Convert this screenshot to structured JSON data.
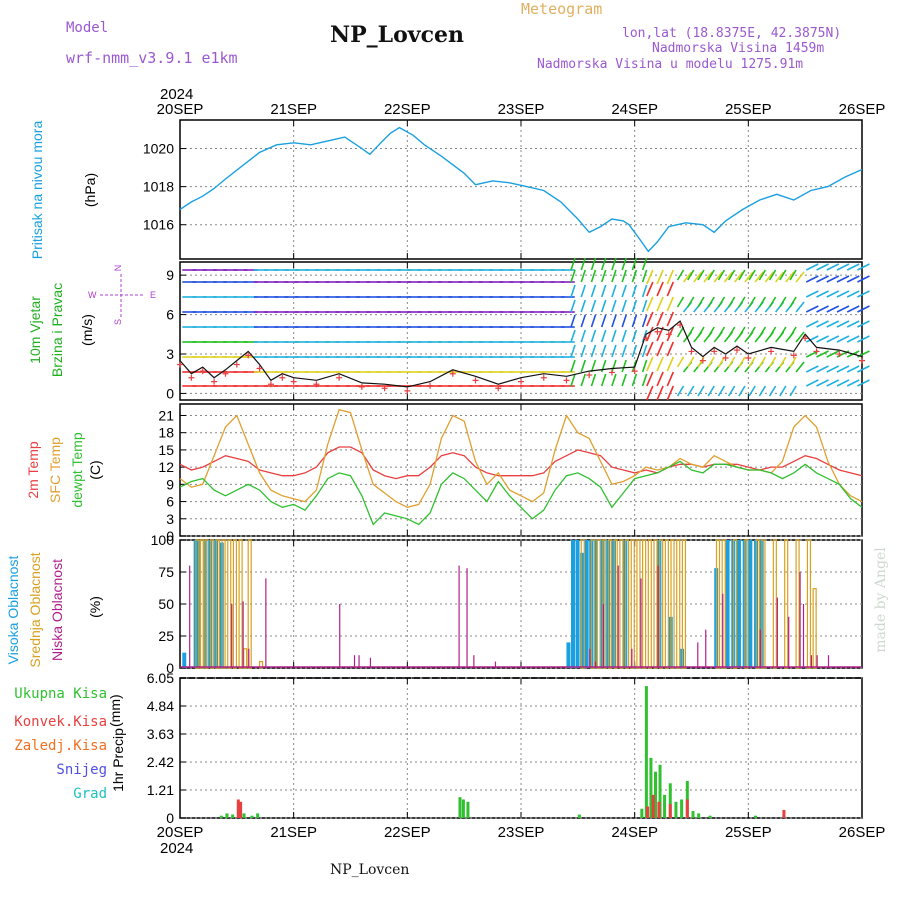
{
  "header": {
    "model_label": "Model",
    "model_value": "wrf-nmm_v3.9.1 e1km",
    "title": "NP_Lovcen",
    "meteogram_label": "Meteogram",
    "lonlat": "lon,lat (18.8375E, 42.3875N)",
    "elevation": "Nadmorska Visina 1459m",
    "model_elevation": "Nadmorska Visina u modelu 1275.91m",
    "year_top": "2024",
    "year_bottom": "2024",
    "footer_station": "NP_Lovcen",
    "watermark": "made by Angel"
  },
  "colors": {
    "pressure": "#1aa0e0",
    "temp2m": "#e84040",
    "sfc": "#e0a030",
    "dew": "#30c030",
    "cloud_high": "#1aa0e0",
    "cloud_mid": "#d8a020",
    "cloud_low": "#b0208c",
    "rain_total": "#30c030",
    "rain_conv": "#e84040",
    "rain_frozen": "#f07020",
    "snow": "#5050e0",
    "hail": "#20c0c0",
    "wind_label": "#20b020",
    "compass": "#b040d0"
  },
  "chart_data": [
    {
      "type": "line",
      "ylabel": "Pritisak na nivou mora",
      "unit": "(hPa)",
      "x_ticks": [
        "20SEP",
        "21SEP",
        "22SEP",
        "23SEP",
        "24SEP",
        "25SEP",
        "26SEP"
      ],
      "yticks": [
        1016,
        1018,
        1020
      ],
      "ylim": [
        1014.2,
        1021.5
      ],
      "x_days": [
        0,
        0.1,
        0.2,
        0.3,
        0.4,
        0.55,
        0.7,
        0.85,
        1.0,
        1.15,
        1.3,
        1.45,
        1.6,
        1.67,
        1.75,
        1.85,
        1.93,
        2.05,
        2.15,
        2.3,
        2.5,
        2.6,
        2.75,
        2.9,
        3.05,
        3.2,
        3.35,
        3.5,
        3.6,
        3.7,
        3.8,
        3.9,
        3.95,
        4.05,
        4.12,
        4.2,
        4.3,
        4.45,
        4.6,
        4.7,
        4.8,
        4.95,
        5.1,
        5.25,
        5.4,
        5.55,
        5.7,
        5.85,
        6.0
      ],
      "values": [
        1016.8,
        1017.2,
        1017.5,
        1017.9,
        1018.4,
        1019.1,
        1019.8,
        1020.2,
        1020.3,
        1020.2,
        1020.4,
        1020.6,
        1020.0,
        1019.7,
        1020.2,
        1020.8,
        1021.1,
        1020.7,
        1020.2,
        1019.6,
        1018.7,
        1018.1,
        1018.3,
        1018.2,
        1018.0,
        1017.8,
        1017.2,
        1016.3,
        1015.6,
        1015.9,
        1016.3,
        1016.2,
        1016.0,
        1015.2,
        1014.6,
        1015.1,
        1015.9,
        1016.1,
        1016.0,
        1015.6,
        1016.2,
        1016.8,
        1017.3,
        1017.6,
        1017.3,
        1017.8,
        1018.0,
        1018.5,
        1018.9
      ]
    },
    {
      "type": "line",
      "ylabel": "10m Vjetar Brzina i Pravac",
      "unit": "(m/s)",
      "compass_labels": {
        "n": "N",
        "s": "S",
        "e": "E",
        "w": "W"
      },
      "x_ticks": [
        "20SEP",
        "21SEP",
        "22SEP",
        "23SEP",
        "24SEP",
        "25SEP",
        "26SEP"
      ],
      "yticks": [
        0,
        3,
        6,
        9
      ],
      "ylim": [
        -0.5,
        10
      ],
      "x_days": [
        0,
        0.1,
        0.2,
        0.3,
        0.4,
        0.5,
        0.6,
        0.7,
        0.8,
        0.9,
        1.0,
        1.2,
        1.4,
        1.6,
        1.8,
        2.0,
        2.2,
        2.4,
        2.6,
        2.8,
        3.0,
        3.2,
        3.4,
        3.6,
        3.8,
        4.0,
        4.1,
        4.2,
        4.3,
        4.4,
        4.5,
        4.6,
        4.7,
        4.8,
        4.9,
        5.0,
        5.2,
        5.4,
        5.5,
        5.6,
        5.8,
        6.0
      ],
      "values": [
        2.5,
        1.5,
        2.0,
        1.2,
        1.8,
        2.5,
        3.2,
        2.2,
        1.0,
        1.5,
        1.2,
        1.0,
        1.5,
        0.8,
        0.7,
        0.5,
        0.9,
        1.8,
        1.3,
        0.7,
        1.2,
        1.5,
        1.3,
        1.7,
        1.9,
        2.0,
        4.5,
        5.0,
        4.8,
        5.5,
        3.5,
        2.8,
        3.5,
        3.0,
        3.6,
        3.0,
        3.5,
        3.2,
        4.5,
        3.5,
        3.3,
        2.8
      ]
    },
    {
      "type": "line",
      "ylabel": [
        "2m Temp",
        "SFC Temp",
        "dewpt Temp"
      ],
      "unit": "(C)",
      "x_ticks": [
        "20SEP",
        "21SEP",
        "22SEP",
        "23SEP",
        "24SEP",
        "25SEP",
        "26SEP"
      ],
      "yticks": [
        0,
        3,
        6,
        9,
        12,
        15,
        18,
        21
      ],
      "ylim": [
        0,
        23
      ],
      "x_days": [
        0,
        0.1,
        0.2,
        0.3,
        0.4,
        0.5,
        0.6,
        0.7,
        0.8,
        0.9,
        1.0,
        1.1,
        1.2,
        1.3,
        1.4,
        1.5,
        1.6,
        1.7,
        1.8,
        1.9,
        2.0,
        2.1,
        2.2,
        2.3,
        2.4,
        2.5,
        2.6,
        2.7,
        2.8,
        2.9,
        3.0,
        3.1,
        3.2,
        3.3,
        3.4,
        3.5,
        3.6,
        3.7,
        3.8,
        3.9,
        4.0,
        4.1,
        4.2,
        4.3,
        4.4,
        4.5,
        4.6,
        4.7,
        4.8,
        4.9,
        5.0,
        5.1,
        5.2,
        5.3,
        5.4,
        5.5,
        5.6,
        5.7,
        5.8,
        5.9,
        6.0
      ],
      "series": [
        {
          "name": "2m Temp",
          "values": [
            12.5,
            11.5,
            12.0,
            13.0,
            14.0,
            13.5,
            13.0,
            11.5,
            11.0,
            10.5,
            10.5,
            11.0,
            12.0,
            14.5,
            15.5,
            15.5,
            14.5,
            11.5,
            10.5,
            10.0,
            10.5,
            10.5,
            12.0,
            14.0,
            14.5,
            14.0,
            12.0,
            11.0,
            10.5,
            10.5,
            10.5,
            10.5,
            11.0,
            13.0,
            14.0,
            15.0,
            14.5,
            14.0,
            12.0,
            11.5,
            11.0,
            11.5,
            11.0,
            12.0,
            12.5,
            12.5,
            12.0,
            12.5,
            12.5,
            12.5,
            12.0,
            11.5,
            12.0,
            12.0,
            13.0,
            14.0,
            13.5,
            12.5,
            11.5,
            11.0,
            10.5
          ]
        },
        {
          "name": "SFC Temp",
          "values": [
            10.0,
            8.5,
            9.0,
            14.0,
            19.0,
            21.0,
            16.0,
            11.0,
            8.0,
            7.0,
            6.5,
            6.0,
            8.0,
            16.0,
            22.0,
            21.5,
            15.0,
            9.0,
            7.5,
            6.0,
            5.0,
            5.5,
            9.0,
            17.0,
            21.0,
            20.0,
            13.0,
            9.0,
            11.0,
            8.0,
            7.0,
            6.0,
            7.5,
            15.0,
            21.0,
            18.0,
            17.0,
            13.0,
            9.0,
            9.5,
            10.5,
            12.0,
            11.5,
            12.0,
            13.5,
            12.5,
            12.0,
            14.0,
            13.0,
            12.0,
            11.5,
            11.5,
            11.0,
            13.0,
            19.0,
            21.0,
            19.0,
            13.0,
            9.0,
            7.0,
            6.0
          ]
        },
        {
          "name": "dewpt Temp",
          "values": [
            8.5,
            9.5,
            10.0,
            8.0,
            7.0,
            8.0,
            9.0,
            8.0,
            6.0,
            5.0,
            5.5,
            4.5,
            7.0,
            10.0,
            11.0,
            10.5,
            7.0,
            2.0,
            4.0,
            3.5,
            3.0,
            2.0,
            4.0,
            9.0,
            11.0,
            10.0,
            8.0,
            6.0,
            9.5,
            7.0,
            5.0,
            3.0,
            4.5,
            8.0,
            10.5,
            11.0,
            10.0,
            8.5,
            5.0,
            7.5,
            10.0,
            10.5,
            11.0,
            12.0,
            13.0,
            11.5,
            11.0,
            12.5,
            12.5,
            12.0,
            11.5,
            11.5,
            11.0,
            10.0,
            11.0,
            12.5,
            11.0,
            10.0,
            9.0,
            6.5,
            5.0
          ]
        }
      ]
    },
    {
      "type": "bar",
      "ylabel": [
        "Visoka Oblacnost",
        "Srednja Oblacnost",
        "Niska Oblacnost"
      ],
      "unit": "(%)",
      "x_ticks": [
        "20SEP",
        "21SEP",
        "22SEP",
        "23SEP",
        "24SEP",
        "25SEP",
        "26SEP"
      ],
      "yticks": [
        0,
        25,
        50,
        75,
        100
      ],
      "ylim": [
        0,
        100
      ],
      "series": [
        {
          "name": "Visoka Oblacnost",
          "x_days": [
            0.02,
            0.12,
            0.15,
            0.2,
            0.25,
            0.3,
            0.35,
            3.4,
            3.44,
            3.48,
            3.52,
            3.56,
            3.6,
            3.64,
            3.7,
            3.75,
            3.8,
            3.9,
            4.2,
            4.3,
            4.4,
            4.7,
            4.8,
            4.85,
            4.9,
            4.95,
            5.0,
            5.05,
            5.1
          ],
          "values": [
            12,
            100,
            100,
            100,
            100,
            100,
            98,
            20,
            100,
            100,
            90,
            100,
            100,
            100,
            100,
            100,
            100,
            100,
            100,
            40,
            15,
            78,
            100,
            100,
            100,
            100,
            100,
            100,
            100
          ]
        },
        {
          "name": "Srednja Oblacnost",
          "x_days": [
            0.14,
            0.18,
            0.22,
            0.27,
            0.32,
            0.37,
            0.42,
            0.47,
            0.52,
            0.56,
            0.6,
            0.7,
            3.53,
            3.62,
            3.67,
            3.72,
            3.77,
            3.82,
            3.87,
            3.92,
            3.97,
            4.02,
            4.07,
            4.12,
            4.17,
            4.22,
            4.27,
            4.32,
            4.37,
            4.42,
            4.72,
            4.77,
            4.87,
            4.97,
            5.07,
            5.12,
            5.22,
            5.32,
            5.42,
            5.52,
            5.57
          ],
          "values": [
            100,
            100,
            100,
            100,
            100,
            100,
            100,
            100,
            100,
            15,
            100,
            5,
            100,
            100,
            100,
            100,
            100,
            100,
            100,
            100,
            100,
            100,
            100,
            100,
            100,
            100,
            100,
            100,
            100,
            100,
            100,
            100,
            100,
            100,
            100,
            100,
            100,
            100,
            100,
            100,
            62
          ]
        },
        {
          "name": "Niska Oblacnost",
          "x_days": [
            0.08,
            0.45,
            0.55,
            0.6,
            0.75,
            1.4,
            1.53,
            1.57,
            1.67,
            2.45,
            2.52,
            2.58,
            2.77,
            3.6,
            3.65,
            3.72,
            3.85,
            3.97,
            4.05,
            4.2,
            4.55,
            4.62,
            4.77,
            5.1,
            5.25,
            5.35,
            5.45,
            5.48,
            5.55,
            5.6,
            5.7
          ],
          "values": [
            80,
            50,
            52,
            15,
            70,
            50,
            10,
            10,
            8,
            80,
            78,
            10,
            5,
            15,
            5,
            50,
            80,
            15,
            70,
            80,
            20,
            30,
            58,
            30,
            55,
            40,
            75,
            50,
            10,
            10,
            10
          ]
        }
      ]
    },
    {
      "type": "bar",
      "ylabel": "1hr Precip",
      "unit": "(mm)",
      "legend": [
        "Ukupna Kisa",
        "Konvek.Kisa",
        "Zaledj.Kisa",
        "Snijeg",
        "Grad"
      ],
      "x_ticks": [
        "20SEP",
        "21SEP",
        "22SEP",
        "23SEP",
        "24SEP",
        "25SEP",
        "26SEP"
      ],
      "yticks": [
        "0",
        "1.21",
        "2.42",
        "3.63",
        "4.84",
        "6.05"
      ],
      "ylim": [
        0,
        6.05
      ],
      "series": [
        {
          "name": "Ukupna Kisa",
          "x_days": [
            0.35,
            0.4,
            0.45,
            0.5,
            0.55,
            0.62,
            0.67,
            2.45,
            2.48,
            2.52,
            3.5,
            4.05,
            4.09,
            4.13,
            4.17,
            4.21,
            4.25,
            4.3,
            4.35,
            4.4,
            4.45,
            4.5,
            4.55,
            4.65,
            5.05,
            5.3
          ],
          "values": [
            0.1,
            0.2,
            0.15,
            0.7,
            0.2,
            0.1,
            0.2,
            0.9,
            0.8,
            0.7,
            0.15,
            0.4,
            5.7,
            2.6,
            2.0,
            2.3,
            1.0,
            1.5,
            0.7,
            0.8,
            1.6,
            0.3,
            0.2,
            0.1,
            0.1,
            0.15
          ]
        },
        {
          "name": "Konvek.Kisa",
          "x_days": [
            0.5,
            0.52,
            4.1,
            4.15,
            4.2,
            4.3,
            4.45,
            5.3
          ],
          "values": [
            0.8,
            0.7,
            0.5,
            1.0,
            0.7,
            0.6,
            0.8,
            0.35
          ]
        },
        {
          "name": "Zaledj.Kisa",
          "x_days": [],
          "values": []
        },
        {
          "name": "Snijeg",
          "x_days": [],
          "values": []
        },
        {
          "name": "Grad",
          "x_days": [],
          "values": []
        }
      ]
    }
  ]
}
